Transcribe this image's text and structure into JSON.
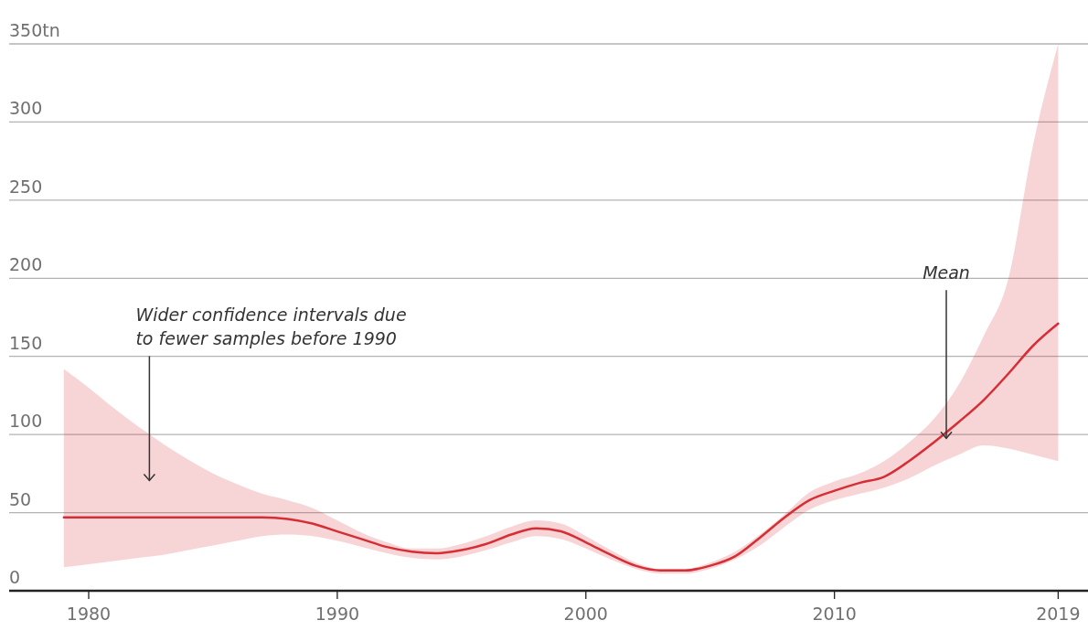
{
  "chart_data": {
    "type": "line",
    "x": [
      1979,
      1980,
      1981,
      1982,
      1983,
      1984,
      1985,
      1986,
      1987,
      1988,
      1989,
      1990,
      1991,
      1992,
      1993,
      1994,
      1995,
      1996,
      1997,
      1998,
      1999,
      2000,
      2001,
      2002,
      2003,
      2004,
      2005,
      2006,
      2007,
      2008,
      2009,
      2010,
      2011,
      2012,
      2013,
      2014,
      2015,
      2016,
      2017,
      2018,
      2019
    ],
    "series": [
      {
        "color": "#d62e35",
        "values": [
          47,
          47,
          47,
          47,
          47,
          47,
          47,
          47,
          47,
          46,
          43,
          38,
          33,
          28,
          25,
          24,
          26,
          30,
          36,
          40,
          38,
          31,
          23,
          16,
          13,
          13,
          16,
          22,
          34,
          47,
          58,
          64,
          69,
          73,
          83,
          95,
          108,
          122,
          139,
          157,
          171
        ],
        "lower": [
          15,
          17,
          19,
          21,
          23,
          26,
          29,
          32,
          35,
          36,
          35,
          32,
          28,
          24,
          21,
          20,
          22,
          26,
          31,
          35,
          33,
          27,
          20,
          14,
          11,
          11,
          14,
          20,
          29,
          41,
          52,
          58,
          62,
          66,
          72,
          80,
          87,
          93,
          91,
          87,
          83
        ],
        "upper": [
          142,
          130,
          117,
          105,
          94,
          84,
          75,
          68,
          62,
          58,
          53,
          45,
          37,
          31,
          27,
          27,
          30,
          35,
          41,
          45,
          43,
          35,
          26,
          18,
          14,
          14,
          18,
          25,
          36,
          49,
          63,
          70,
          75,
          83,
          95,
          110,
          132,
          163,
          200,
          286,
          350
        ]
      }
    ],
    "xlim": [
      1976.8,
      2020.2
    ],
    "xticks": [
      1980,
      1990,
      2000,
      2010,
      2019
    ],
    "ylim": [
      0,
      350
    ],
    "yticks": [
      0,
      50,
      100,
      150,
      200,
      250,
      300,
      {
        "value": 350,
        "label": "350tn"
      }
    ],
    "grid": "y",
    "line_style": "solid",
    "marker": "none",
    "annotations": [
      "Wider confidence intervals due\nto fewer samples before 1990",
      {
        "text": "Mean",
        "x": 2014.5,
        "y": 97
      }
    ]
  }
}
